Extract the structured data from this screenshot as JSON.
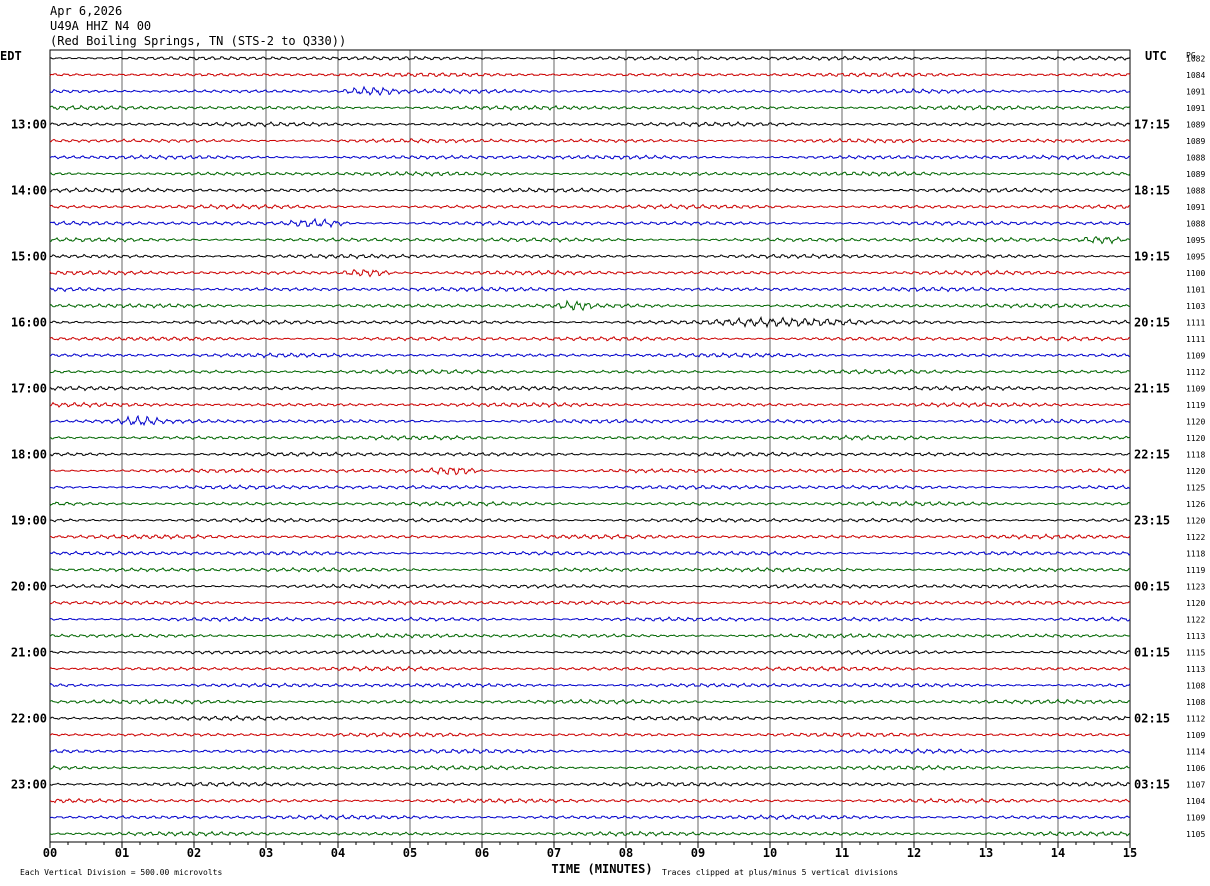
{
  "header": {
    "date": "Apr 6,2026",
    "station": "U49A HHZ N4 00",
    "location": "(Red Boiling Springs, TN (STS-2 to Q330))"
  },
  "chart_data": {
    "type": "line",
    "left_axis_label": "EDT",
    "right_axis_label": "UTC",
    "right_value_header": "PG",
    "xlabel": "TIME (MINUTES)",
    "x_ticks": [
      "00",
      "01",
      "02",
      "03",
      "04",
      "05",
      "06",
      "07",
      "08",
      "09",
      "10",
      "11",
      "12",
      "13",
      "14",
      "15"
    ],
    "xlim": [
      0,
      15
    ],
    "left_hour_labels": [
      "13:00",
      "14:00",
      "15:00",
      "16:00",
      "17:00",
      "18:00",
      "19:00",
      "20:00",
      "21:00",
      "22:00",
      "23:00"
    ],
    "right_hour_labels": [
      "17:15",
      "18:15",
      "19:15",
      "20:15",
      "21:15",
      "22:15",
      "23:15",
      "00:15",
      "01:15",
      "02:15",
      "03:15"
    ],
    "trace_colors": [
      "#000000",
      "#cc0000",
      "#0000cc",
      "#006600"
    ],
    "trace_values": [
      1082,
      1084,
      1091,
      1091,
      1089,
      1089,
      1088,
      1089,
      1088,
      1091,
      1088,
      1095,
      1095,
      1100,
      1101,
      1103,
      1111,
      1111,
      1109,
      1112,
      1109,
      1119,
      1120,
      1120,
      1118,
      1120,
      1125,
      1126,
      1120,
      1122,
      1118,
      1119,
      1123,
      1120,
      1122,
      1113,
      1115,
      1113,
      1108,
      1108,
      1112,
      1109,
      1114,
      1106,
      1107,
      1104,
      1109,
      1105
    ],
    "events": [
      {
        "row": 2,
        "start_min": 4.0,
        "end_min": 4.9
      },
      {
        "row": 10,
        "start_min": 3.2,
        "end_min": 4.2
      },
      {
        "row": 11,
        "start_min": 14.2,
        "end_min": 15.0
      },
      {
        "row": 13,
        "start_min": 4.0,
        "end_min": 4.8
      },
      {
        "row": 15,
        "start_min": 7.0,
        "end_min": 7.6
      },
      {
        "row": 16,
        "start_min": 9.0,
        "end_min": 11.5
      },
      {
        "row": 22,
        "start_min": 0.9,
        "end_min": 1.6
      },
      {
        "row": 25,
        "start_min": 5.2,
        "end_min": 6.0
      }
    ],
    "footer_left": "Each Vertical Division =  500.00 microvolts",
    "footer_right": "Traces clipped at plus/minus 5 vertical divisions",
    "grid": true
  }
}
